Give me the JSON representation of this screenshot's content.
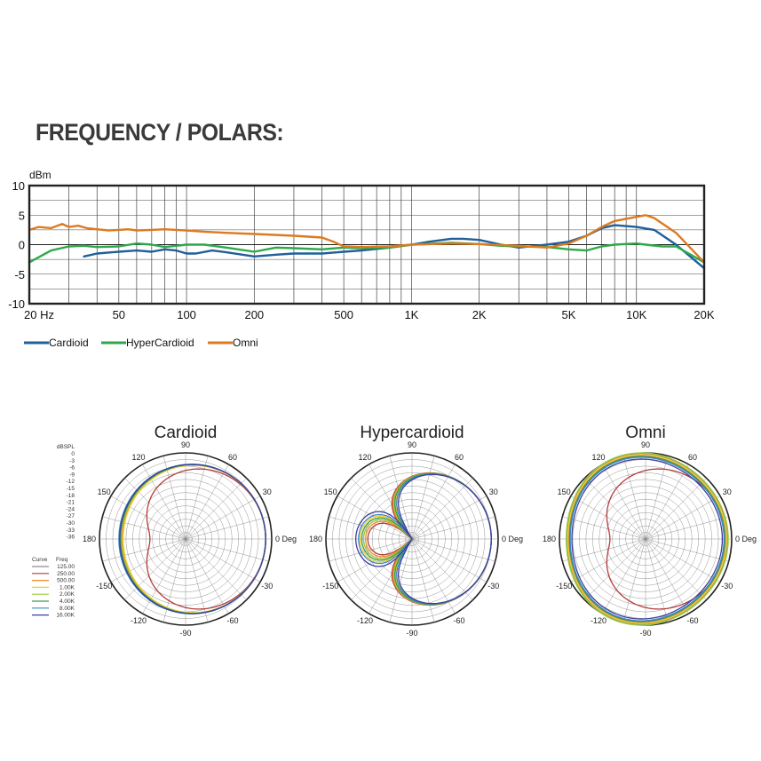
{
  "title": "FREQUENCY / POLARS:",
  "chart_data": [
    {
      "type": "line",
      "ylabel": "dBm",
      "xlabel": "",
      "xscale": "log",
      "xlim": [
        20,
        20000
      ],
      "ylim": [
        -10,
        10
      ],
      "grid": true,
      "legend_position": "bottom-left",
      "y_ticks": [
        "10",
        "5",
        "0",
        "-5",
        "-10"
      ],
      "y_tick_values": [
        10,
        5,
        0,
        -5,
        -10
      ],
      "x_ticks": [
        {
          "value": 20,
          "label": "20  Hz"
        },
        {
          "value": 50,
          "label": "50"
        },
        {
          "value": 100,
          "label": "100"
        },
        {
          "value": 200,
          "label": "200"
        },
        {
          "value": 500,
          "label": "500"
        },
        {
          "value": 1000,
          "label": "1K"
        },
        {
          "value": 2000,
          "label": "2K"
        },
        {
          "value": 5000,
          "label": "5K"
        },
        {
          "value": 10000,
          "label": "10K"
        },
        {
          "value": 20000,
          "label": "20K"
        }
      ],
      "series": [
        {
          "name": "Cardioid",
          "color": "#1f5f9a",
          "x": [
            35,
            40,
            50,
            60,
            70,
            80,
            90,
            100,
            110,
            130,
            150,
            200,
            250,
            300,
            400,
            500,
            600,
            800,
            1000,
            1200,
            1500,
            1700,
            2000,
            2500,
            3000,
            4000,
            5000,
            6000,
            7000,
            8000,
            10000,
            12000,
            15000,
            20000
          ],
          "y": [
            -2,
            -1.5,
            -1.2,
            -1,
            -1.2,
            -0.8,
            -1,
            -1.5,
            -1.5,
            -1,
            -1.3,
            -2,
            -1.7,
            -1.5,
            -1.5,
            -1.2,
            -1,
            -0.5,
            0,
            0.5,
            1,
            1,
            0.8,
            0,
            -0.5,
            0,
            0.5,
            1.5,
            2.8,
            3.3,
            3,
            2.5,
            0,
            -4
          ]
        },
        {
          "name": "HyperCardioid",
          "color": "#2ea84a",
          "x": [
            20,
            25,
            30,
            35,
            40,
            50,
            60,
            70,
            80,
            90,
            100,
            120,
            150,
            200,
            250,
            300,
            400,
            500,
            600,
            800,
            1000,
            1500,
            2000,
            2500,
            3000,
            4000,
            5000,
            6000,
            7000,
            8000,
            10000,
            11000,
            13000,
            15000,
            20000
          ],
          "y": [
            -3,
            -1,
            -0.3,
            -0.2,
            -0.4,
            -0.3,
            0.2,
            0,
            -0.4,
            -0.2,
            0,
            0,
            -0.5,
            -1.2,
            -0.5,
            -0.6,
            -0.8,
            -0.5,
            -0.6,
            -0.5,
            0,
            0.3,
            0.1,
            -0.2,
            -0.3,
            -0.4,
            -0.8,
            -1,
            -0.3,
            0,
            0.2,
            0,
            -0.3,
            -0.3,
            -3
          ]
        },
        {
          "name": "Omni",
          "color": "#dd7a1f",
          "x": [
            20,
            22,
            25,
            28,
            30,
            33,
            36,
            40,
            45,
            50,
            55,
            60,
            70,
            80,
            90,
            100,
            120,
            150,
            200,
            300,
            400,
            450,
            500,
            600,
            800,
            1000,
            1500,
            2000,
            3000,
            4000,
            5000,
            6000,
            7000,
            8000,
            10000,
            11000,
            12000,
            15000,
            20000
          ],
          "y": [
            2.5,
            3,
            2.8,
            3.5,
            3,
            3.2,
            2.8,
            2.6,
            2.4,
            2.5,
            2.6,
            2.4,
            2.5,
            2.6,
            2.5,
            2.4,
            2.2,
            2,
            1.8,
            1.5,
            1.2,
            0.5,
            -0.3,
            -0.4,
            -0.3,
            0,
            0.2,
            0.1,
            -0.2,
            -0.5,
            0.2,
            1.5,
            3,
            4,
            4.7,
            5,
            4.5,
            2,
            -3
          ]
        }
      ]
    },
    {
      "type": "polar",
      "title": "Cardioid",
      "angle_labels": [
        "90",
        "60",
        "30",
        "0 Deg",
        "-30",
        "-60",
        "-90",
        "-120",
        "-150",
        "180",
        "150",
        "120"
      ],
      "scale_title": "dBSPL",
      "scale_values": [
        "0",
        "-3",
        "-6",
        "-9",
        "-12",
        "-15",
        "-18",
        "-21",
        "-24",
        "-27",
        "-30",
        "-33",
        "-36"
      ],
      "curve_header": "Curve",
      "freq_header": "Freq",
      "curves": [
        {
          "freq": "125.00",
          "color": "#8d8d8d",
          "kind": "cardioid",
          "p": 0.74
        },
        {
          "freq": "250.00",
          "color": "#b33c3c",
          "kind": "cardioid",
          "p": 0.55
        },
        {
          "freq": "500.00",
          "color": "#f08a2c",
          "kind": "cardioid",
          "p": 0.71
        },
        {
          "freq": "1.00K",
          "color": "#f2d02e",
          "kind": "cardioid",
          "p": 0.7
        },
        {
          "freq": "2.00K",
          "color": "#9fcb3b",
          "kind": "cardioid",
          "p": 0.72
        },
        {
          "freq": "4.00K",
          "color": "#3d9b57",
          "kind": "cardioid",
          "p": 0.73
        },
        {
          "freq": "8.00K",
          "color": "#3a86c8",
          "kind": "cardioid",
          "p": 0.75
        },
        {
          "freq": "16.00K",
          "color": "#3d3f9e",
          "kind": "cardioid",
          "p": 0.74
        }
      ]
    },
    {
      "type": "polar",
      "title": "Hypercardioid",
      "angle_labels": [
        "90",
        "60",
        "30",
        "0 Deg",
        "-30",
        "-60",
        "-90",
        "-120",
        "-150",
        "180",
        "150",
        "120"
      ],
      "curves": [
        {
          "freq": "125.00",
          "color": "#8d8d8d",
          "kind": "hyper",
          "p": 0.4
        },
        {
          "freq": "250.00",
          "color": "#b33c3c",
          "kind": "hyper",
          "p": 0.42
        },
        {
          "freq": "500.00",
          "color": "#f08a2c",
          "kind": "hyper",
          "p": 0.41
        },
        {
          "freq": "1.00K",
          "color": "#f2d02e",
          "kind": "hyper",
          "p": 0.38
        },
        {
          "freq": "2.00K",
          "color": "#9fcb3b",
          "kind": "hyper",
          "p": 0.4
        },
        {
          "freq": "4.00K",
          "color": "#3d9b57",
          "kind": "hyper",
          "p": 0.39
        },
        {
          "freq": "8.00K",
          "color": "#3a86c8",
          "kind": "hyper",
          "p": 0.37
        },
        {
          "freq": "16.00K",
          "color": "#3d3f9e",
          "kind": "hyper",
          "p": 0.35
        }
      ]
    },
    {
      "type": "polar",
      "title": "Omni",
      "angle_labels": [
        "90",
        "60",
        "30",
        "0 Deg",
        "-30",
        "-60",
        "-90",
        "-120",
        "-150",
        "180",
        "150",
        "120"
      ],
      "curves": [
        {
          "freq": "125.00",
          "color": "#8d8d8d",
          "kind": "omni",
          "p": 0.96
        },
        {
          "freq": "250.00",
          "color": "#b33c3c",
          "kind": "cardioid",
          "p": 0.55
        },
        {
          "freq": "500.00",
          "color": "#f08a2c",
          "kind": "omni",
          "p": 0.94
        },
        {
          "freq": "1.00K",
          "color": "#f2d02e",
          "kind": "omni",
          "p": 0.95
        },
        {
          "freq": "2.00K",
          "color": "#9fcb3b",
          "kind": "omni",
          "p": 0.97
        },
        {
          "freq": "4.00K",
          "color": "#3d9b57",
          "kind": "omni",
          "p": 0.93
        },
        {
          "freq": "8.00K",
          "color": "#3a86c8",
          "kind": "omni",
          "p": 0.92
        },
        {
          "freq": "16.00K",
          "color": "#3d3f9e",
          "kind": "omni",
          "p": 0.9
        }
      ]
    }
  ]
}
